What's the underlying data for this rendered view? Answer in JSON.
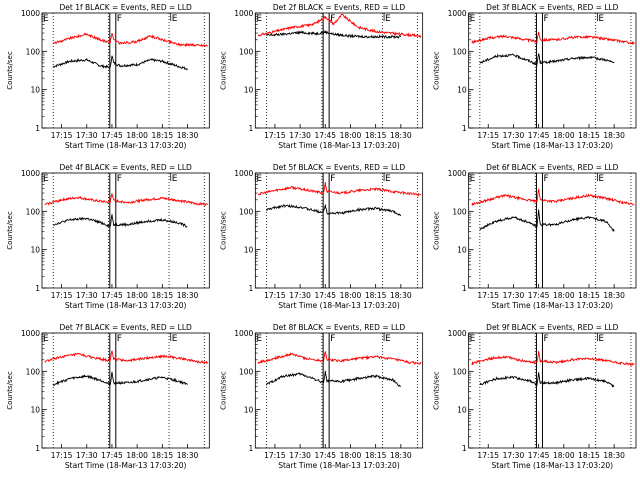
{
  "chart_data": [
    {
      "type": "line",
      "title": "Det 1f BLACK = Events, RED = LLD",
      "xlabel": "Start Time (18-Mar-13 17:03:20)",
      "ylabel": "Counts/sec",
      "yscale": "log",
      "ylim": [
        1,
        1000
      ],
      "xlim": [
        "17:03:20",
        "18:43:00"
      ],
      "xticks": [
        "17:15",
        "17:30",
        "17:45",
        "18:00",
        "18:15",
        "18:30"
      ],
      "yticks": [
        "1",
        "10",
        "100",
        "1000"
      ],
      "markers": [
        {
          "label": "E",
          "x": "17:03:20"
        },
        {
          "label": "F",
          "x": "17:45:30"
        },
        {
          "label": "E",
          "x": "18:20:00"
        }
      ],
      "dotted_lines_x": [
        "17:10:00",
        "17:43:00",
        "18:19:00",
        "18:40:00"
      ],
      "series": [
        {
          "color": "#ff0000",
          "x": [
            "17:10",
            "17:20",
            "17:30",
            "17:38",
            "17:44",
            "17:45",
            "17:46",
            "17:50",
            "18:00",
            "18:08",
            "18:15",
            "18:25",
            "18:35",
            "18:42"
          ],
          "y": [
            160,
            220,
            280,
            200,
            170,
            300,
            200,
            160,
            180,
            250,
            200,
            150,
            145,
            140
          ]
        },
        {
          "color": "#000000",
          "x": [
            "17:10",
            "17:20",
            "17:30",
            "17:38",
            "17:44",
            "17:45",
            "17:46",
            "17:50",
            "18:00",
            "18:08",
            "18:15",
            "18:25",
            "18:30"
          ],
          "y": [
            40,
            55,
            60,
            42,
            38,
            80,
            50,
            42,
            45,
            60,
            55,
            40,
            35
          ]
        }
      ]
    },
    {
      "type": "line",
      "title": "Det 2f BLACK = Events, RED = LLD",
      "xlabel": "Start Time (18-Mar-13 17:03:20)",
      "ylabel": "Counts/sec",
      "yscale": "log",
      "ylim": [
        1,
        1000
      ],
      "xlim": [
        "17:03:20",
        "18:43:00"
      ],
      "xticks": [
        "17:15",
        "17:30",
        "17:45",
        "18:00",
        "18:15",
        "18:30"
      ],
      "yticks": [
        "1",
        "10",
        "100",
        "1000"
      ],
      "markers": [
        {
          "label": "E",
          "x": "17:03:20"
        },
        {
          "label": "F",
          "x": "17:45:30"
        },
        {
          "label": "E",
          "x": "18:20:00"
        }
      ],
      "dotted_lines_x": [
        "17:10:00",
        "17:43:00",
        "18:19:00",
        "18:40:00"
      ],
      "series": [
        {
          "color": "#ff0000",
          "x": [
            "17:05",
            "17:15",
            "17:25",
            "17:35",
            "17:40",
            "17:45",
            "17:50",
            "17:55",
            "18:00",
            "18:05",
            "18:15",
            "18:30",
            "18:42"
          ],
          "y": [
            260,
            330,
            420,
            480,
            560,
            800,
            520,
            900,
            600,
            420,
            330,
            280,
            250
          ]
        },
        {
          "color": "#000000",
          "x": [
            "17:10",
            "17:20",
            "17:30",
            "17:40",
            "17:45",
            "17:50",
            "18:00",
            "18:10",
            "18:20",
            "18:30"
          ],
          "y": [
            260,
            280,
            310,
            290,
            320,
            280,
            250,
            240,
            240,
            240
          ]
        }
      ]
    },
    {
      "type": "line",
      "title": "Det 3f BLACK = Events, RED = LLD",
      "xlabel": "Start Time (18-Mar-13 17:03:20)",
      "ylabel": "Counts/sec",
      "yscale": "log",
      "ylim": [
        1,
        1000
      ],
      "xlim": [
        "17:03:20",
        "18:43:00"
      ],
      "xticks": [
        "17:15",
        "17:30",
        "17:45",
        "18:00",
        "18:15",
        "18:30"
      ],
      "yticks": [
        "1",
        "10",
        "100",
        "1000"
      ],
      "markers": [
        {
          "label": "E",
          "x": "17:03:20"
        },
        {
          "label": "F",
          "x": "17:45:30"
        },
        {
          "label": "E",
          "x": "18:20:00"
        }
      ],
      "dotted_lines_x": [
        "17:10:00",
        "17:43:00",
        "18:19:00",
        "18:40:00"
      ],
      "series": [
        {
          "color": "#ff0000",
          "x": [
            "17:05",
            "17:15",
            "17:25",
            "17:35",
            "17:44",
            "17:45",
            "17:46",
            "17:55",
            "18:05",
            "18:15",
            "18:25",
            "18:35",
            "18:42"
          ],
          "y": [
            170,
            220,
            250,
            210,
            180,
            330,
            200,
            200,
            230,
            240,
            210,
            180,
            160
          ]
        },
        {
          "color": "#000000",
          "x": [
            "17:10",
            "17:20",
            "17:30",
            "17:40",
            "17:44",
            "17:45",
            "17:46",
            "17:55",
            "18:05",
            "18:15",
            "18:25",
            "18:30"
          ],
          "y": [
            50,
            75,
            80,
            55,
            45,
            90,
            50,
            55,
            65,
            70,
            60,
            50
          ]
        }
      ]
    },
    {
      "type": "line",
      "title": "Det 4f BLACK = Events, RED = LLD",
      "xlabel": "Start Time (18-Mar-13 17:03:20)",
      "ylabel": "Counts/sec",
      "yscale": "log",
      "ylim": [
        1,
        1000
      ],
      "xlim": [
        "17:03:20",
        "18:43:00"
      ],
      "xticks": [
        "17:15",
        "17:30",
        "17:45",
        "18:00",
        "18:15",
        "18:30"
      ],
      "yticks": [
        "1",
        "10",
        "100",
        "1000"
      ],
      "markers": [
        {
          "label": "E",
          "x": "17:03:20"
        },
        {
          "label": "F",
          "x": "17:45:30"
        },
        {
          "label": "E",
          "x": "18:20:00"
        }
      ],
      "dotted_lines_x": [
        "17:10:00",
        "17:43:00",
        "18:19:00",
        "18:40:00"
      ],
      "series": [
        {
          "color": "#ff0000",
          "x": [
            "17:05",
            "17:15",
            "17:25",
            "17:35",
            "17:44",
            "17:45",
            "17:46",
            "17:55",
            "18:05",
            "18:15",
            "18:25",
            "18:35",
            "18:42"
          ],
          "y": [
            150,
            200,
            230,
            190,
            170,
            310,
            190,
            170,
            200,
            220,
            190,
            160,
            150
          ]
        },
        {
          "color": "#000000",
          "x": [
            "17:10",
            "17:20",
            "17:30",
            "17:40",
            "17:44",
            "17:45",
            "17:46",
            "17:55",
            "18:05",
            "18:15",
            "18:25",
            "18:30"
          ],
          "y": [
            45,
            60,
            65,
            48,
            40,
            85,
            45,
            45,
            55,
            60,
            50,
            40
          ]
        }
      ]
    },
    {
      "type": "line",
      "title": "Det 5f BLACK = Events, RED = LLD",
      "xlabel": "Start Time (18-Mar-13 17:03:20)",
      "ylabel": "Counts/sec",
      "yscale": "log",
      "ylim": [
        1,
        1000
      ],
      "xlim": [
        "17:03:20",
        "18:43:00"
      ],
      "xticks": [
        "17:15",
        "17:30",
        "17:45",
        "18:00",
        "18:15",
        "18:30"
      ],
      "yticks": [
        "1",
        "10",
        "100",
        "1000"
      ],
      "markers": [
        {
          "label": "E",
          "x": "17:03:20"
        },
        {
          "label": "F",
          "x": "17:45:30"
        },
        {
          "label": "E",
          "x": "18:20:00"
        }
      ],
      "dotted_lines_x": [
        "17:10:00",
        "17:43:00",
        "18:19:00",
        "18:40:00"
      ],
      "series": [
        {
          "color": "#ff0000",
          "x": [
            "17:05",
            "17:15",
            "17:25",
            "17:35",
            "17:44",
            "17:45",
            "17:46",
            "17:55",
            "18:05",
            "18:15",
            "18:25",
            "18:35",
            "18:42"
          ],
          "y": [
            280,
            350,
            420,
            350,
            300,
            550,
            330,
            300,
            350,
            380,
            330,
            290,
            270
          ]
        },
        {
          "color": "#000000",
          "x": [
            "17:10",
            "17:20",
            "17:30",
            "17:40",
            "17:44",
            "17:45",
            "17:46",
            "17:55",
            "18:05",
            "18:15",
            "18:25",
            "18:30"
          ],
          "y": [
            110,
            140,
            130,
            100,
            95,
            150,
            90,
            90,
            110,
            120,
            100,
            80
          ]
        }
      ]
    },
    {
      "type": "line",
      "title": "Det 6f BLACK = Events, RED = LLD",
      "xlabel": "Start Time (18-Mar-13 17:03:20)",
      "ylabel": "Counts/sec",
      "yscale": "log",
      "ylim": [
        1,
        1000
      ],
      "xlim": [
        "17:03:20",
        "18:43:00"
      ],
      "xticks": [
        "17:15",
        "17:30",
        "17:45",
        "18:00",
        "18:15",
        "18:30"
      ],
      "yticks": [
        "1",
        "10",
        "100",
        "1000"
      ],
      "markers": [
        {
          "label": "E",
          "x": "17:03:20"
        },
        {
          "label": "F",
          "x": "17:45:30"
        },
        {
          "label": "E",
          "x": "18:20:00"
        }
      ],
      "dotted_lines_x": [
        "17:10:00",
        "17:43:00",
        "18:19:00",
        "18:40:00"
      ],
      "series": [
        {
          "color": "#ff0000",
          "x": [
            "17:05",
            "17:15",
            "17:25",
            "17:35",
            "17:44",
            "17:45",
            "17:46",
            "17:55",
            "18:05",
            "18:15",
            "18:25",
            "18:35",
            "18:42"
          ],
          "y": [
            150,
            200,
            260,
            210,
            180,
            380,
            200,
            180,
            220,
            260,
            220,
            170,
            150
          ]
        },
        {
          "color": "#000000",
          "x": [
            "17:10",
            "17:20",
            "17:30",
            "17:40",
            "17:44",
            "17:45",
            "17:46",
            "17:55",
            "18:05",
            "18:15",
            "18:25",
            "18:30"
          ],
          "y": [
            35,
            55,
            70,
            50,
            40,
            110,
            45,
            45,
            60,
            70,
            55,
            30
          ]
        }
      ]
    },
    {
      "type": "line",
      "title": "Det 7f BLACK = Events, RED = LLD",
      "xlabel": "Start Time (18-Mar-13 17:03:20)",
      "ylabel": "Counts/sec",
      "yscale": "log",
      "ylim": [
        1,
        1000
      ],
      "xlim": [
        "17:03:20",
        "18:43:00"
      ],
      "xticks": [
        "17:15",
        "17:30",
        "17:45",
        "18:00",
        "18:15",
        "18:30"
      ],
      "yticks": [
        "1",
        "10",
        "100",
        "1000"
      ],
      "markers": [
        {
          "label": "E",
          "x": "17:03:20"
        },
        {
          "label": "F",
          "x": "17:45:30"
        },
        {
          "label": "E",
          "x": "18:20:00"
        }
      ],
      "dotted_lines_x": [
        "17:10:00",
        "17:43:00",
        "18:19:00",
        "18:40:00"
      ],
      "series": [
        {
          "color": "#ff0000",
          "x": [
            "17:05",
            "17:15",
            "17:25",
            "17:35",
            "17:44",
            "17:45",
            "17:46",
            "17:55",
            "18:05",
            "18:15",
            "18:25",
            "18:35",
            "18:42"
          ],
          "y": [
            180,
            240,
            280,
            220,
            190,
            350,
            210,
            190,
            220,
            250,
            220,
            180,
            170
          ]
        },
        {
          "color": "#000000",
          "x": [
            "17:10",
            "17:20",
            "17:30",
            "17:40",
            "17:44",
            "17:45",
            "17:46",
            "17:55",
            "18:05",
            "18:15",
            "18:25",
            "18:30"
          ],
          "y": [
            45,
            65,
            75,
            55,
            45,
            95,
            50,
            50,
            60,
            70,
            55,
            45
          ]
        }
      ]
    },
    {
      "type": "line",
      "title": "Det 8f BLACK = Events, RED = LLD",
      "xlabel": "Start Time (18-Mar-13 17:03:20)",
      "ylabel": "Counts/sec",
      "yscale": "log",
      "ylim": [
        1,
        1000
      ],
      "xlim": [
        "17:03:20",
        "18:43:00"
      ],
      "xticks": [
        "17:15",
        "17:30",
        "17:45",
        "18:00",
        "18:15",
        "18:30"
      ],
      "yticks": [
        "1",
        "10",
        "100",
        "1000"
      ],
      "markers": [
        {
          "label": "E",
          "x": "17:03:20"
        },
        {
          "label": "F",
          "x": "17:45:30"
        },
        {
          "label": "E",
          "x": "18:20:00"
        }
      ],
      "dotted_lines_x": [
        "17:10:00",
        "17:43:00",
        "18:19:00",
        "18:40:00"
      ],
      "series": [
        {
          "color": "#ff0000",
          "x": [
            "17:05",
            "17:15",
            "17:25",
            "17:35",
            "17:44",
            "17:45",
            "17:46",
            "17:55",
            "18:05",
            "18:15",
            "18:25",
            "18:35",
            "18:42"
          ],
          "y": [
            170,
            220,
            280,
            210,
            190,
            350,
            200,
            190,
            220,
            240,
            210,
            170,
            160
          ]
        },
        {
          "color": "#000000",
          "x": [
            "17:10",
            "17:20",
            "17:30",
            "17:40",
            "17:44",
            "17:45",
            "17:46",
            "17:55",
            "18:05",
            "18:15",
            "18:25",
            "18:30"
          ],
          "y": [
            45,
            75,
            85,
            60,
            50,
            100,
            55,
            55,
            65,
            75,
            60,
            40
          ]
        }
      ]
    },
    {
      "type": "line",
      "title": "Det 9f BLACK = Events, RED = LLD",
      "xlabel": "Start Time (18-Mar-13 17:03:20)",
      "ylabel": "Counts/sec",
      "yscale": "log",
      "ylim": [
        1,
        1000
      ],
      "xlim": [
        "17:03:20",
        "18:43:00"
      ],
      "xticks": [
        "17:15",
        "17:30",
        "17:45",
        "18:00",
        "18:15",
        "18:30"
      ],
      "yticks": [
        "1",
        "10",
        "100",
        "1000"
      ],
      "markers": [
        {
          "label": "E",
          "x": "17:03:20"
        },
        {
          "label": "F",
          "x": "17:45:30"
        },
        {
          "label": "E",
          "x": "18:20:00"
        }
      ],
      "dotted_lines_x": [
        "17:10:00",
        "17:43:00",
        "18:19:00",
        "18:40:00"
      ],
      "series": [
        {
          "color": "#ff0000",
          "x": [
            "17:05",
            "17:15",
            "17:25",
            "17:35",
            "17:44",
            "17:45",
            "17:46",
            "17:55",
            "18:05",
            "18:15",
            "18:25",
            "18:35",
            "18:42"
          ],
          "y": [
            160,
            210,
            240,
            190,
            170,
            320,
            190,
            170,
            200,
            220,
            190,
            160,
            150
          ]
        },
        {
          "color": "#000000",
          "x": [
            "17:10",
            "17:20",
            "17:30",
            "17:40",
            "17:44",
            "17:45",
            "17:46",
            "17:55",
            "18:05",
            "18:15",
            "18:25",
            "18:30"
          ],
          "y": [
            45,
            65,
            70,
            55,
            45,
            90,
            50,
            50,
            60,
            65,
            55,
            40
          ]
        }
      ]
    }
  ]
}
